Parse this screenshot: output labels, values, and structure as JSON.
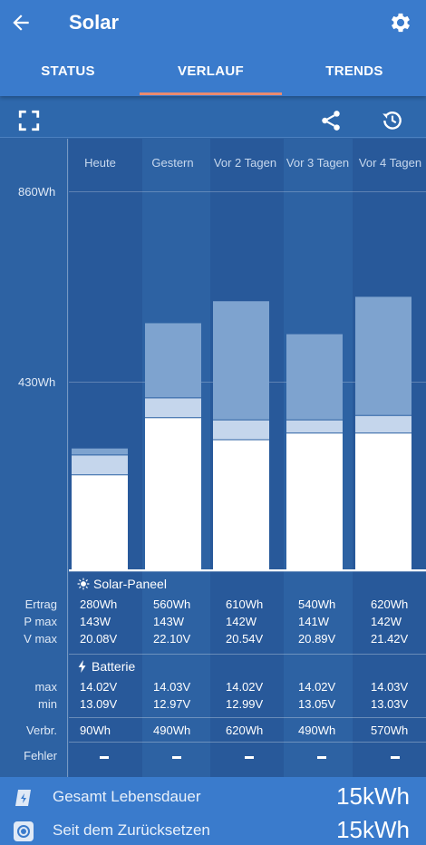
{
  "header": {
    "title": "Solar"
  },
  "tabs": [
    {
      "label": "STATUS"
    },
    {
      "label": "VERLAUF",
      "active": true
    },
    {
      "label": "TRENDS"
    }
  ],
  "toolbar": {
    "icons": [
      "fullscreen-icon",
      "share-icon",
      "history-icon"
    ]
  },
  "chart_data": {
    "type": "bar",
    "categories": [
      "Heute",
      "Gestern",
      "Vor 2 Tagen",
      "Vor 3 Tagen",
      "Vor 4 Tagen"
    ],
    "ytick_labels": [
      "860Wh",
      "430Wh"
    ],
    "ylim": [
      0,
      860
    ],
    "ticks": [
      430,
      860
    ],
    "stack_segments": [
      [
        215,
        45,
        15
      ],
      [
        345,
        45,
        170
      ],
      [
        295,
        45,
        270
      ],
      [
        310,
        30,
        195
      ],
      [
        310,
        40,
        270
      ]
    ]
  },
  "table": {
    "solar_title": "Solar-Paneel",
    "batt_title": "Batterie",
    "rows": {
      "ertrag": {
        "label": "Ertrag",
        "values": [
          "280Wh",
          "560Wh",
          "610Wh",
          "540Wh",
          "620Wh"
        ]
      },
      "pmax": {
        "label": "P max",
        "values": [
          "143W",
          "143W",
          "142W",
          "141W",
          "142W"
        ]
      },
      "vmax": {
        "label": "V max",
        "values": [
          "20.08V",
          "22.10V",
          "20.54V",
          "20.89V",
          "21.42V"
        ]
      },
      "bmax": {
        "label": "max",
        "values": [
          "14.02V",
          "14.03V",
          "14.02V",
          "14.02V",
          "14.03V"
        ]
      },
      "bmin": {
        "label": "min",
        "values": [
          "13.09V",
          "12.97V",
          "12.99V",
          "13.05V",
          "13.03V"
        ]
      },
      "verbr": {
        "label": "Verbr.",
        "values": [
          "90Wh",
          "490Wh",
          "620Wh",
          "490Wh",
          "570Wh"
        ]
      },
      "fehler": {
        "label": "Fehler"
      }
    }
  },
  "footer": {
    "lifetime_label": "Gesamt Lebensdauer",
    "lifetime_value": "15kWh",
    "reset_label": "Seit dem Zurücksetzen",
    "reset_value": "15kWh"
  },
  "colors": {
    "appbar": "#3a7bcc",
    "background": "#2d62a3",
    "tab_indicator": "#e98a6f",
    "bar_white": "#ffffff",
    "bar_light": "#c5d6ec",
    "bar_mid": "#7ea3cf"
  }
}
